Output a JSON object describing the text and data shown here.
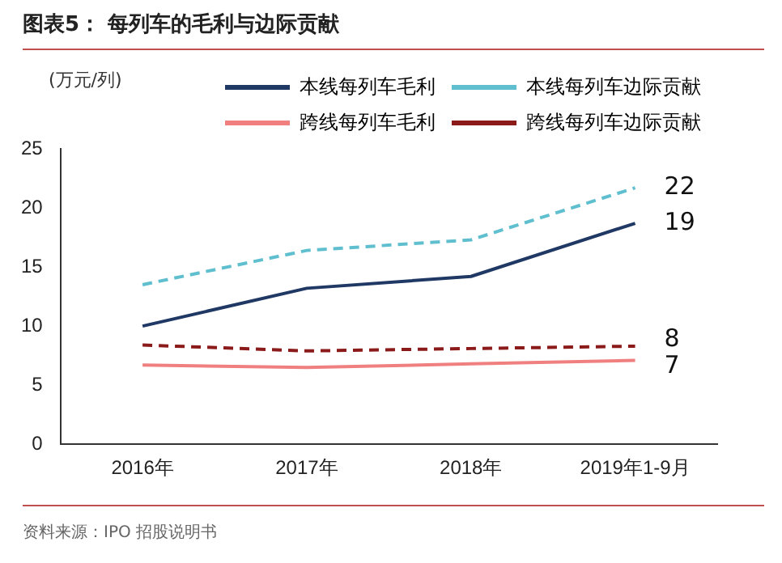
{
  "chart_data": {
    "type": "line",
    "title": "图表5：  每列车的毛利与边际贡献",
    "ylabel": "(万元/列)",
    "categories": [
      "2016年",
      "2017年",
      "2018年",
      "2019年1-9月"
    ],
    "series": [
      {
        "name": "本线每列车毛利",
        "color": "#1f3864",
        "line_style": "solid",
        "values": [
          10,
          13.2,
          14.2,
          18.7
        ],
        "value_labels": [
          null,
          null,
          null,
          "19"
        ]
      },
      {
        "name": "本线每列车边际贡献",
        "color": "#5fbfcf",
        "line_style": "dashed",
        "values": [
          13.5,
          16.4,
          17.3,
          21.7
        ],
        "value_labels": [
          null,
          null,
          null,
          "22"
        ]
      },
      {
        "name": "跨线每列车毛利",
        "color": "#f08080",
        "line_style": "solid",
        "values": [
          6.7,
          6.5,
          6.8,
          7.1
        ],
        "value_labels": [
          null,
          null,
          null,
          "7"
        ]
      },
      {
        "name": "跨线每列车边际贡献",
        "color": "#8b1a1a",
        "line_style": "dashed",
        "values": [
          8.4,
          7.9,
          8.1,
          8.3
        ],
        "value_labels": [
          null,
          null,
          null,
          "8"
        ]
      }
    ],
    "ylim": [
      0,
      25
    ],
    "yticks": [
      0,
      5,
      10,
      15,
      20,
      25
    ],
    "grid": false,
    "legend": "top",
    "marker": "none",
    "annotations": [
      "资料来源：IPO 招股说明书"
    ]
  }
}
